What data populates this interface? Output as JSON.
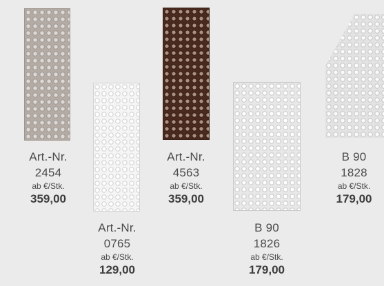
{
  "products": [
    {
      "line1": "Art.-Nr.",
      "line2": "2454",
      "price_unit": "ab €/Stk.",
      "price": "359,00",
      "finish": "beige"
    },
    {
      "line1": "Art.-Nr.",
      "line2": "0765",
      "price_unit": "ab €/Stk.",
      "price": "129,00",
      "finish": "white"
    },
    {
      "line1": "Art.-Nr.",
      "line2": "4563",
      "price_unit": "ab €/Stk.",
      "price": "359,00",
      "finish": "brown"
    },
    {
      "line1": "B 90",
      "line2": "1826",
      "price_unit": "ab €/Stk.",
      "price": "179,00",
      "finish": "light-grey"
    },
    {
      "line1": "B 90",
      "line2": "1828",
      "price_unit": "ab €/Stk.",
      "price": "179,00",
      "finish": "light-grey"
    }
  ],
  "colors": {
    "background": "#ebebeb",
    "beige_panel": "#b3aba4",
    "white_panel": "#f5f5f5",
    "brown_panel": "#4a2a1e",
    "grey_panel": "#e8e8e8"
  }
}
